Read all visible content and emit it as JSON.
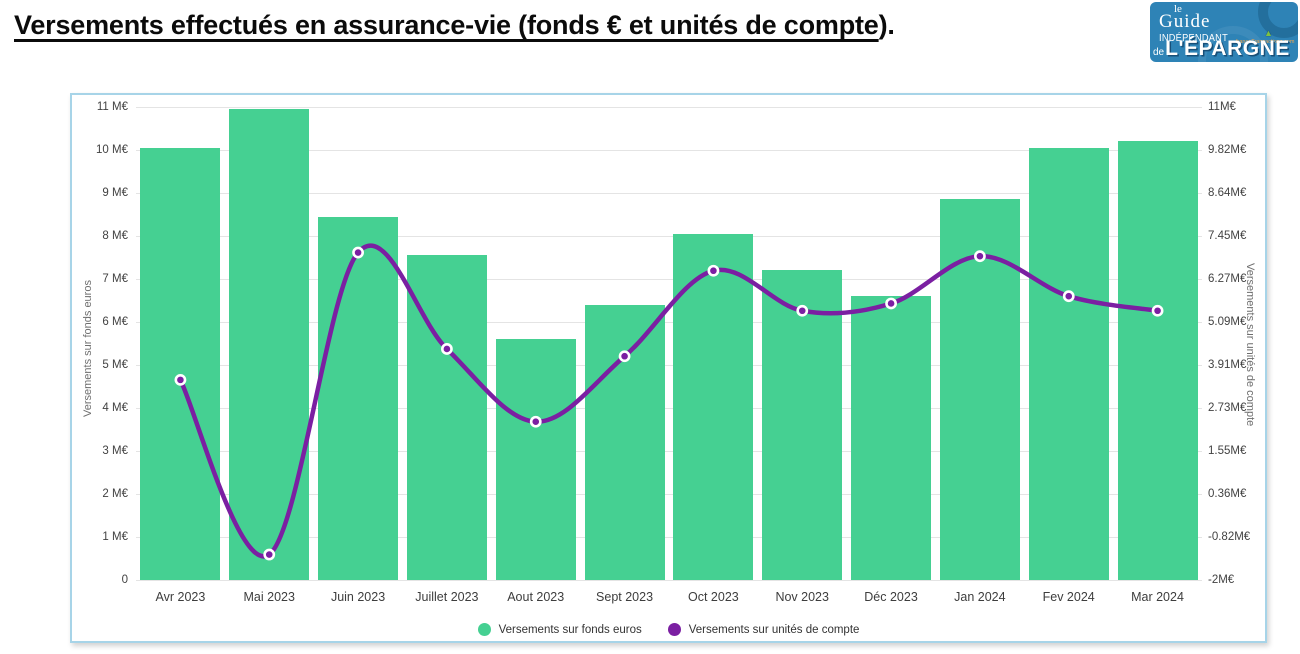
{
  "page": {
    "title_main": "Versements effectués en assurance-vie (fonds € et unités de compte",
    "title_tail": ")."
  },
  "logo": {
    "le": "le",
    "guide": "Guide",
    "independant": "INDÉPENDANT",
    "site": "franceTransactions.com",
    "de": "de",
    "epargne": "L'ÉPARGNE"
  },
  "chart_data": {
    "type": "bar+line",
    "categories": [
      "Avr 2023",
      "Mai 2023",
      "Juin 2023",
      "Juillet 2023",
      "Aout 2023",
      "Sept 2023",
      "Oct 2023",
      "Nov 2023",
      "Déc 2023",
      "Jan 2024",
      "Fev 2024",
      "Mar 2024"
    ],
    "series": [
      {
        "name": "Versements sur fonds euros",
        "type": "bar",
        "axis": "left",
        "color": "#45D092",
        "values": [
          10.05,
          10.95,
          8.45,
          7.55,
          5.6,
          6.4,
          8.05,
          7.2,
          6.6,
          8.85,
          10.05,
          10.2
        ]
      },
      {
        "name": "Versements sur unités de compte",
        "type": "line",
        "axis": "right",
        "color": "#7B1FA2",
        "values": [
          3.5,
          -1.3,
          7.0,
          4.35,
          2.35,
          4.15,
          6.5,
          5.4,
          5.6,
          6.9,
          5.8,
          5.4
        ]
      }
    ],
    "left_axis": {
      "label": "Versements sur fonds euros",
      "min": 0,
      "max": 11,
      "ticks": [
        "0",
        "1 M€",
        "2 M€",
        "3 M€",
        "4 M€",
        "5 M€",
        "6 M€",
        "7 M€",
        "8 M€",
        "9 M€",
        "10 M€",
        "11 M€"
      ]
    },
    "right_axis": {
      "label": "Versements sur unités de compte",
      "min": -2,
      "max": 11,
      "ticks": [
        "-2M€",
        "-0.82M€",
        "0.36M€",
        "1.55M€",
        "2.73M€",
        "3.91M€",
        "5.09M€",
        "6.27M€",
        "7.45M€",
        "8.64M€",
        "9.82M€",
        "11M€"
      ]
    },
    "legend_position": "bottom-center",
    "grid": true
  }
}
